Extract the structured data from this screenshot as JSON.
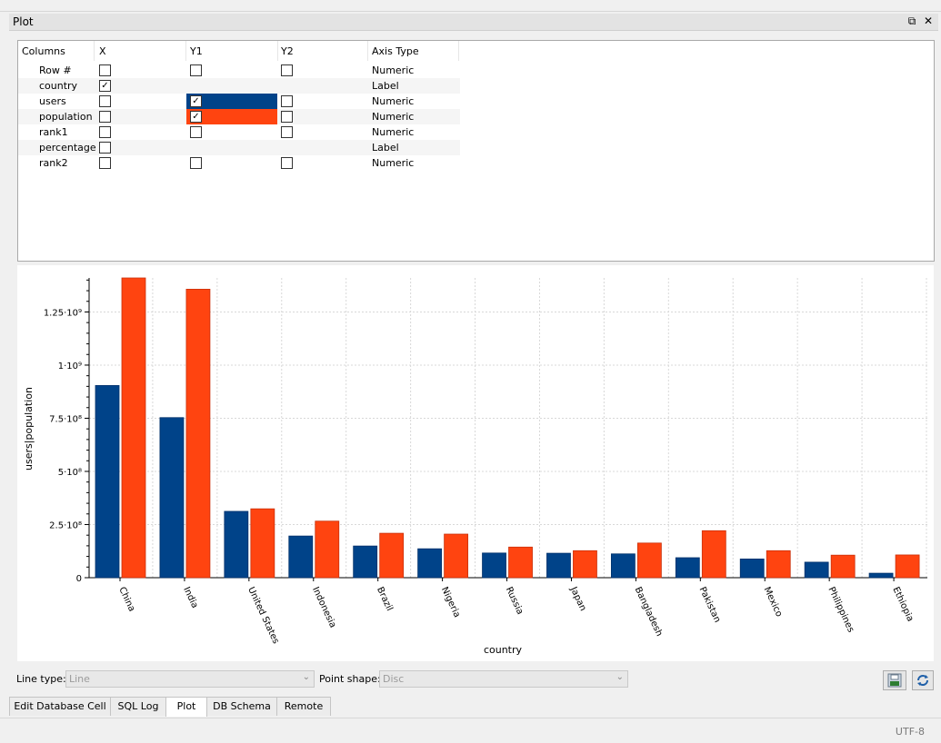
{
  "dock": {
    "title": "Plot",
    "float_icon": "⧉",
    "close_icon": "✕"
  },
  "columns_table": {
    "headers": [
      "Columns",
      "X",
      "Y1",
      "Y2",
      "Axis Type"
    ],
    "rows": [
      {
        "name": "Row #",
        "x": false,
        "y1": false,
        "y2": false,
        "has_y": true,
        "axis_type": "Numeric"
      },
      {
        "name": "country",
        "x": true,
        "y1": false,
        "y2": false,
        "has_y": false,
        "axis_type": "Label"
      },
      {
        "name": "users",
        "x": false,
        "y1": true,
        "y2": false,
        "has_y": true,
        "axis_type": "Numeric",
        "color": "#004389"
      },
      {
        "name": "population",
        "x": false,
        "y1": true,
        "y2": false,
        "has_y": true,
        "axis_type": "Numeric",
        "color": "#ff4410"
      },
      {
        "name": "rank1",
        "x": false,
        "y1": false,
        "y2": false,
        "has_y": true,
        "axis_type": "Numeric"
      },
      {
        "name": "percentage",
        "x": false,
        "y1": false,
        "y2": false,
        "has_y": false,
        "axis_type": "Label"
      },
      {
        "name": "rank2",
        "x": false,
        "y1": false,
        "y2": false,
        "has_y": true,
        "axis_type": "Numeric"
      }
    ]
  },
  "chart_data": {
    "type": "bar",
    "categories": [
      "China",
      "India",
      "United States",
      "Indonesia",
      "Brazil",
      "Nigeria",
      "Russia",
      "Japan",
      "Bangladesh",
      "Pakistan",
      "Mexico",
      "Philippines",
      "Ethiopia"
    ],
    "series": [
      {
        "name": "users",
        "color": "#004389",
        "values": [
          904000000,
          753000000,
          312000000,
          196000000,
          149000000,
          136000000,
          116000000,
          115000000,
          112000000,
          94000000,
          88000000,
          73000000,
          21000000
        ]
      },
      {
        "name": "population",
        "color": "#ff4410",
        "values": [
          1410000000,
          1357000000,
          324000000,
          266000000,
          209000000,
          205000000,
          144000000,
          127000000,
          163000000,
          221000000,
          127000000,
          106000000,
          107000000
        ]
      }
    ],
    "xlabel": "country",
    "ylabel": "users|population",
    "ylim": [
      0,
      1410000000
    ],
    "yticks": [
      {
        "value": 0,
        "label": "0"
      },
      {
        "value": 250000000,
        "label": "2.5·10⁸"
      },
      {
        "value": 500000000,
        "label": "5·10⁸"
      },
      {
        "value": 750000000,
        "label": "7.5·10⁸"
      },
      {
        "value": 1000000000,
        "label": "1·10⁹"
      },
      {
        "value": 1250000000,
        "label": "1.25·10⁹"
      }
    ],
    "grid": true,
    "legend": "none"
  },
  "options": {
    "line_type_label": "Line type:",
    "line_type_value": "Line",
    "point_shape_label": "Point shape:",
    "point_shape_value": "Disc",
    "dropdown_icon": "chevron-down-icon",
    "save_icon": "save-image-icon",
    "refresh_icon": "refresh-icon"
  },
  "tabs": [
    {
      "label": "Edit Database Cell",
      "active": false
    },
    {
      "label": "SQL Log",
      "active": false
    },
    {
      "label": "Plot",
      "active": true
    },
    {
      "label": "DB Schema",
      "active": false
    },
    {
      "label": "Remote",
      "active": false
    }
  ],
  "status": {
    "encoding": "UTF-8"
  }
}
